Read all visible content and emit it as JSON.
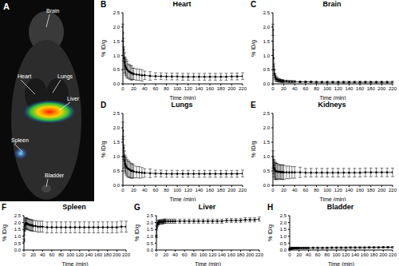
{
  "chart_data": [
    {
      "type": "image",
      "label": "A",
      "annotations": [
        "Brain",
        "Heart",
        "Lungs",
        "Liver",
        "Spleen",
        "Bladder"
      ]
    },
    {
      "type": "line",
      "label": "B",
      "title": "Heart",
      "x_label": "Time (min)",
      "y_label": "% ID/g",
      "color": "#000000",
      "marker": "circle",
      "grid": false,
      "xlim": [
        0,
        220
      ],
      "xticks": [
        0,
        20,
        40,
        60,
        80,
        100,
        120,
        140,
        160,
        180,
        200,
        220
      ],
      "ylim": [
        0,
        2.5
      ],
      "yticks": [
        {
          "value": 0,
          "label": "0.0"
        },
        0.5,
        {
          "value": 1,
          "label": "1.0"
        },
        1.5,
        {
          "value": 2,
          "label": "2.0"
        },
        2.5
      ],
      "x": [
        0,
        1,
        2,
        3,
        4,
        5,
        6,
        8,
        10,
        12,
        14,
        16,
        18,
        20,
        25,
        30,
        35,
        40,
        50,
        60,
        70,
        80,
        90,
        100,
        110,
        120,
        130,
        140,
        150,
        160,
        170,
        180,
        190,
        200,
        210,
        220
      ],
      "values": [
        1.8,
        1.2,
        0.9,
        0.75,
        0.65,
        0.6,
        0.55,
        0.5,
        0.45,
        0.42,
        0.4,
        0.38,
        0.36,
        0.35,
        0.33,
        0.32,
        0.3,
        0.3,
        0.28,
        0.27,
        0.27,
        0.26,
        0.26,
        0.26,
        0.25,
        0.25,
        0.25,
        0.25,
        0.25,
        0.25,
        0.25,
        0.25,
        0.25,
        0.26,
        0.26,
        0.27
      ],
      "errors": [
        0.3,
        0.4,
        0.4,
        0.35,
        0.3,
        0.3,
        0.3,
        0.3,
        0.25,
        0.25,
        0.25,
        0.25,
        0.2,
        0.2,
        0.2,
        0.2,
        0.2,
        0.15,
        0.15,
        0.12,
        0.12,
        0.12,
        0.12,
        0.12,
        0.12,
        0.12,
        0.12,
        0.12,
        0.12,
        0.12,
        0.12,
        0.12,
        0.12,
        0.12,
        0.12,
        0.12
      ]
    },
    {
      "type": "line",
      "label": "C",
      "title": "Brain",
      "x_label": "Time (min)",
      "y_label": "% ID/g",
      "color": "#000000",
      "marker": "circle",
      "grid": false,
      "xlim": [
        0,
        220
      ],
      "xticks": [
        0,
        20,
        40,
        60,
        80,
        100,
        120,
        140,
        160,
        180,
        200,
        220
      ],
      "ylim": [
        0,
        2.5
      ],
      "yticks": [
        {
          "value": 0,
          "label": "0.0"
        },
        0.5,
        {
          "value": 1,
          "label": "1.0"
        },
        1.5,
        {
          "value": 2,
          "label": "2.0"
        },
        2.5
      ],
      "x": [
        0,
        1,
        2,
        3,
        4,
        5,
        6,
        8,
        10,
        12,
        14,
        16,
        18,
        20,
        25,
        30,
        35,
        40,
        50,
        60,
        70,
        80,
        90,
        100,
        110,
        120,
        130,
        140,
        150,
        160,
        170,
        180,
        190,
        200,
        210,
        220
      ],
      "values": [
        1.9,
        0.9,
        0.5,
        0.35,
        0.25,
        0.2,
        0.17,
        0.15,
        0.13,
        0.12,
        0.11,
        0.1,
        0.1,
        0.09,
        0.09,
        0.08,
        0.08,
        0.08,
        0.07,
        0.07,
        0.07,
        0.06,
        0.06,
        0.06,
        0.06,
        0.06,
        0.06,
        0.06,
        0.06,
        0.06,
        0.06,
        0.06,
        0.06,
        0.06,
        0.06,
        0.06
      ],
      "errors": [
        0.2,
        0.3,
        0.2,
        0.15,
        0.1,
        0.1,
        0.08,
        0.08,
        0.06,
        0.06,
        0.05,
        0.05,
        0.05,
        0.04,
        0.04,
        0.04,
        0.04,
        0.03,
        0.03,
        0.03,
        0.03,
        0.03,
        0.03,
        0.03,
        0.03,
        0.03,
        0.03,
        0.03,
        0.03,
        0.03,
        0.03,
        0.03,
        0.03,
        0.03,
        0.03,
        0.03
      ]
    },
    {
      "type": "line",
      "label": "D",
      "title": "Lungs",
      "x_label": "Time (min)",
      "y_label": "% ID/g",
      "color": "#000000",
      "marker": "circle",
      "grid": false,
      "xlim": [
        0,
        220
      ],
      "xticks": [
        0,
        20,
        40,
        60,
        80,
        100,
        120,
        140,
        160,
        180,
        200,
        220
      ],
      "ylim": [
        0,
        2.5
      ],
      "yticks": [
        {
          "value": 0,
          "label": "0.0"
        },
        0.5,
        {
          "value": 1,
          "label": "1.0"
        },
        1.5,
        {
          "value": 2,
          "label": "2.0"
        },
        2.5
      ],
      "x": [
        0,
        1,
        2,
        3,
        4,
        5,
        6,
        8,
        10,
        12,
        14,
        16,
        18,
        20,
        25,
        30,
        35,
        40,
        50,
        60,
        70,
        80,
        90,
        100,
        110,
        120,
        130,
        140,
        150,
        160,
        170,
        180,
        190,
        200,
        210,
        220
      ],
      "values": [
        1.9,
        1.3,
        1.0,
        0.85,
        0.75,
        0.7,
        0.65,
        0.6,
        0.57,
        0.55,
        0.52,
        0.5,
        0.5,
        0.48,
        0.46,
        0.45,
        0.44,
        0.43,
        0.42,
        0.41,
        0.41,
        0.4,
        0.4,
        0.4,
        0.4,
        0.4,
        0.4,
        0.4,
        0.4,
        0.4,
        0.4,
        0.4,
        0.4,
        0.4,
        0.4,
        0.41
      ],
      "errors": [
        0.3,
        0.4,
        0.4,
        0.35,
        0.3,
        0.3,
        0.3,
        0.3,
        0.28,
        0.28,
        0.26,
        0.25,
        0.25,
        0.22,
        0.2,
        0.2,
        0.18,
        0.15,
        0.15,
        0.12,
        0.12,
        0.12,
        0.12,
        0.12,
        0.12,
        0.12,
        0.12,
        0.12,
        0.12,
        0.12,
        0.12,
        0.12,
        0.12,
        0.12,
        0.12,
        0.12
      ]
    },
    {
      "type": "line",
      "label": "E",
      "title": "Kidneys",
      "x_label": "Time (min)",
      "y_label": "% ID/g",
      "color": "#000000",
      "marker": "circle",
      "grid": false,
      "xlim": [
        0,
        220
      ],
      "xticks": [
        0,
        20,
        40,
        60,
        80,
        100,
        120,
        140,
        160,
        180,
        200,
        220
      ],
      "ylim": [
        0,
        2.5
      ],
      "yticks": [
        {
          "value": 0,
          "label": "0.0"
        },
        0.5,
        {
          "value": 1,
          "label": "1.0"
        },
        1.5,
        {
          "value": 2,
          "label": "2.0"
        },
        2.5
      ],
      "x": [
        0,
        1,
        2,
        3,
        4,
        5,
        6,
        8,
        10,
        12,
        14,
        16,
        18,
        20,
        25,
        30,
        35,
        40,
        50,
        60,
        70,
        80,
        90,
        100,
        110,
        120,
        130,
        140,
        150,
        160,
        170,
        180,
        190,
        200,
        210,
        220
      ],
      "values": [
        0.9,
        0.7,
        0.6,
        0.55,
        0.5,
        0.5,
        0.48,
        0.48,
        0.47,
        0.47,
        0.46,
        0.46,
        0.46,
        0.45,
        0.45,
        0.45,
        0.45,
        0.45,
        0.45,
        0.44,
        0.44,
        0.44,
        0.44,
        0.44,
        0.44,
        0.44,
        0.44,
        0.44,
        0.44,
        0.44,
        0.45,
        0.45,
        0.45,
        0.45,
        0.45,
        0.45
      ],
      "errors": [
        0.3,
        0.3,
        0.3,
        0.3,
        0.3,
        0.28,
        0.28,
        0.28,
        0.25,
        0.25,
        0.25,
        0.25,
        0.25,
        0.25,
        0.22,
        0.22,
        0.2,
        0.2,
        0.18,
        0.15,
        0.15,
        0.15,
        0.15,
        0.15,
        0.15,
        0.15,
        0.15,
        0.15,
        0.15,
        0.15,
        0.15,
        0.15,
        0.15,
        0.15,
        0.15,
        0.15
      ]
    },
    {
      "type": "line",
      "label": "F",
      "title": "Spleen",
      "x_label": "Time (min)",
      "y_label": "% ID/g",
      "color": "#000000",
      "marker": "circle",
      "grid": false,
      "xlim": [
        0,
        220
      ],
      "xticks": [
        0,
        20,
        40,
        60,
        80,
        100,
        120,
        140,
        160,
        180,
        200,
        220
      ],
      "ylim": [
        0,
        2.5
      ],
      "yticks": [
        {
          "value": 0,
          "label": "0.0"
        },
        0.5,
        {
          "value": 1,
          "label": "1.0"
        },
        1.5,
        {
          "value": 2,
          "label": "2.0"
        },
        2.5
      ],
      "x": [
        0,
        1,
        2,
        3,
        4,
        5,
        6,
        8,
        10,
        12,
        14,
        16,
        18,
        20,
        25,
        30,
        35,
        40,
        50,
        60,
        70,
        80,
        90,
        100,
        110,
        120,
        130,
        140,
        150,
        160,
        170,
        180,
        190,
        200,
        210,
        220
      ],
      "values": [
        0.7,
        1.4,
        1.8,
        1.9,
        1.95,
        1.95,
        1.9,
        1.9,
        1.85,
        1.85,
        1.8,
        1.8,
        1.8,
        1.75,
        1.75,
        1.7,
        1.7,
        1.7,
        1.65,
        1.65,
        1.65,
        1.65,
        1.65,
        1.65,
        1.65,
        1.65,
        1.65,
        1.65,
        1.65,
        1.65,
        1.65,
        1.65,
        1.65,
        1.65,
        1.7,
        1.7
      ],
      "errors": [
        0.1,
        0.3,
        0.4,
        0.4,
        0.4,
        0.4,
        0.4,
        0.4,
        0.4,
        0.4,
        0.4,
        0.4,
        0.4,
        0.4,
        0.4,
        0.4,
        0.4,
        0.4,
        0.4,
        0.4,
        0.4,
        0.4,
        0.4,
        0.4,
        0.4,
        0.4,
        0.4,
        0.4,
        0.4,
        0.4,
        0.4,
        0.4,
        0.4,
        0.4,
        0.4,
        0.4
      ]
    },
    {
      "type": "line",
      "label": "G",
      "title": "Liver",
      "x_label": "Time (min)",
      "y_label": "% ID/g",
      "color": "#000000",
      "marker": "circle",
      "grid": false,
      "xlim": [
        0,
        220
      ],
      "xticks": [
        0,
        20,
        40,
        60,
        80,
        100,
        120,
        140,
        160,
        180,
        200,
        220
      ],
      "ylim": [
        0,
        2.5
      ],
      "yticks": [
        {
          "value": 0,
          "label": "0.0"
        },
        0.5,
        {
          "value": 1,
          "label": "1.0"
        },
        1.5,
        {
          "value": 2,
          "label": "2.0"
        },
        2.5
      ],
      "x": [
        0,
        1,
        2,
        3,
        4,
        5,
        6,
        8,
        10,
        12,
        14,
        16,
        18,
        20,
        25,
        30,
        35,
        40,
        50,
        60,
        70,
        80,
        90,
        100,
        110,
        120,
        130,
        140,
        150,
        160,
        170,
        180,
        190,
        200,
        210,
        220
      ],
      "values": [
        1.0,
        1.6,
        1.85,
        1.95,
        2.0,
        2.0,
        2.05,
        2.05,
        2.05,
        2.05,
        2.05,
        2.1,
        2.1,
        2.1,
        2.1,
        2.1,
        2.1,
        2.1,
        2.1,
        2.1,
        2.1,
        2.1,
        2.1,
        2.1,
        2.1,
        2.1,
        2.1,
        2.1,
        2.15,
        2.15,
        2.15,
        2.15,
        2.2,
        2.2,
        2.2,
        2.25
      ],
      "errors": [
        0.1,
        0.15,
        0.15,
        0.15,
        0.15,
        0.15,
        0.15,
        0.15,
        0.15,
        0.15,
        0.15,
        0.15,
        0.15,
        0.15,
        0.15,
        0.15,
        0.15,
        0.15,
        0.15,
        0.15,
        0.15,
        0.15,
        0.15,
        0.15,
        0.15,
        0.15,
        0.15,
        0.15,
        0.15,
        0.15,
        0.15,
        0.15,
        0.15,
        0.15,
        0.15,
        0.15
      ]
    },
    {
      "type": "line",
      "label": "H",
      "title": "Bladder",
      "x_label": "Time (min)",
      "y_label": "% ID/g",
      "color": "#000000",
      "marker": "circle",
      "grid": false,
      "xlim": [
        0,
        220
      ],
      "xticks": [
        0,
        20,
        40,
        60,
        80,
        100,
        120,
        140,
        160,
        180,
        200,
        220
      ],
      "ylim": [
        0,
        2.5
      ],
      "yticks": [
        {
          "value": 0,
          "label": "0.0"
        },
        0.5,
        {
          "value": 1,
          "label": "1.0"
        },
        1.5,
        {
          "value": 2,
          "label": "2.0"
        },
        2.5
      ],
      "x": [
        0,
        1,
        2,
        3,
        4,
        5,
        6,
        8,
        10,
        12,
        14,
        16,
        18,
        20,
        25,
        30,
        35,
        40,
        50,
        60,
        70,
        80,
        90,
        100,
        110,
        120,
        130,
        140,
        150,
        160,
        170,
        180,
        190,
        200,
        210,
        220
      ],
      "values": [
        0.1,
        0.1,
        0.11,
        0.12,
        0.12,
        0.13,
        0.13,
        0.13,
        0.14,
        0.14,
        0.14,
        0.14,
        0.15,
        0.15,
        0.15,
        0.15,
        0.15,
        0.15,
        0.16,
        0.16,
        0.16,
        0.16,
        0.17,
        0.17,
        0.17,
        0.17,
        0.18,
        0.18,
        0.18,
        0.18,
        0.19,
        0.19,
        0.19,
        0.2,
        0.2,
        0.2
      ],
      "errors": [
        0.03,
        0.03,
        0.05,
        0.05,
        0.05,
        0.05,
        0.05,
        0.05,
        0.05,
        0.05,
        0.05,
        0.05,
        0.05,
        0.05,
        0.05,
        0.05,
        0.05,
        0.05,
        0.05,
        0.05,
        0.05,
        0.05,
        0.05,
        0.05,
        0.05,
        0.05,
        0.05,
        0.05,
        0.05,
        0.05,
        0.05,
        0.05,
        0.05,
        0.05,
        0.05,
        0.05
      ]
    }
  ]
}
